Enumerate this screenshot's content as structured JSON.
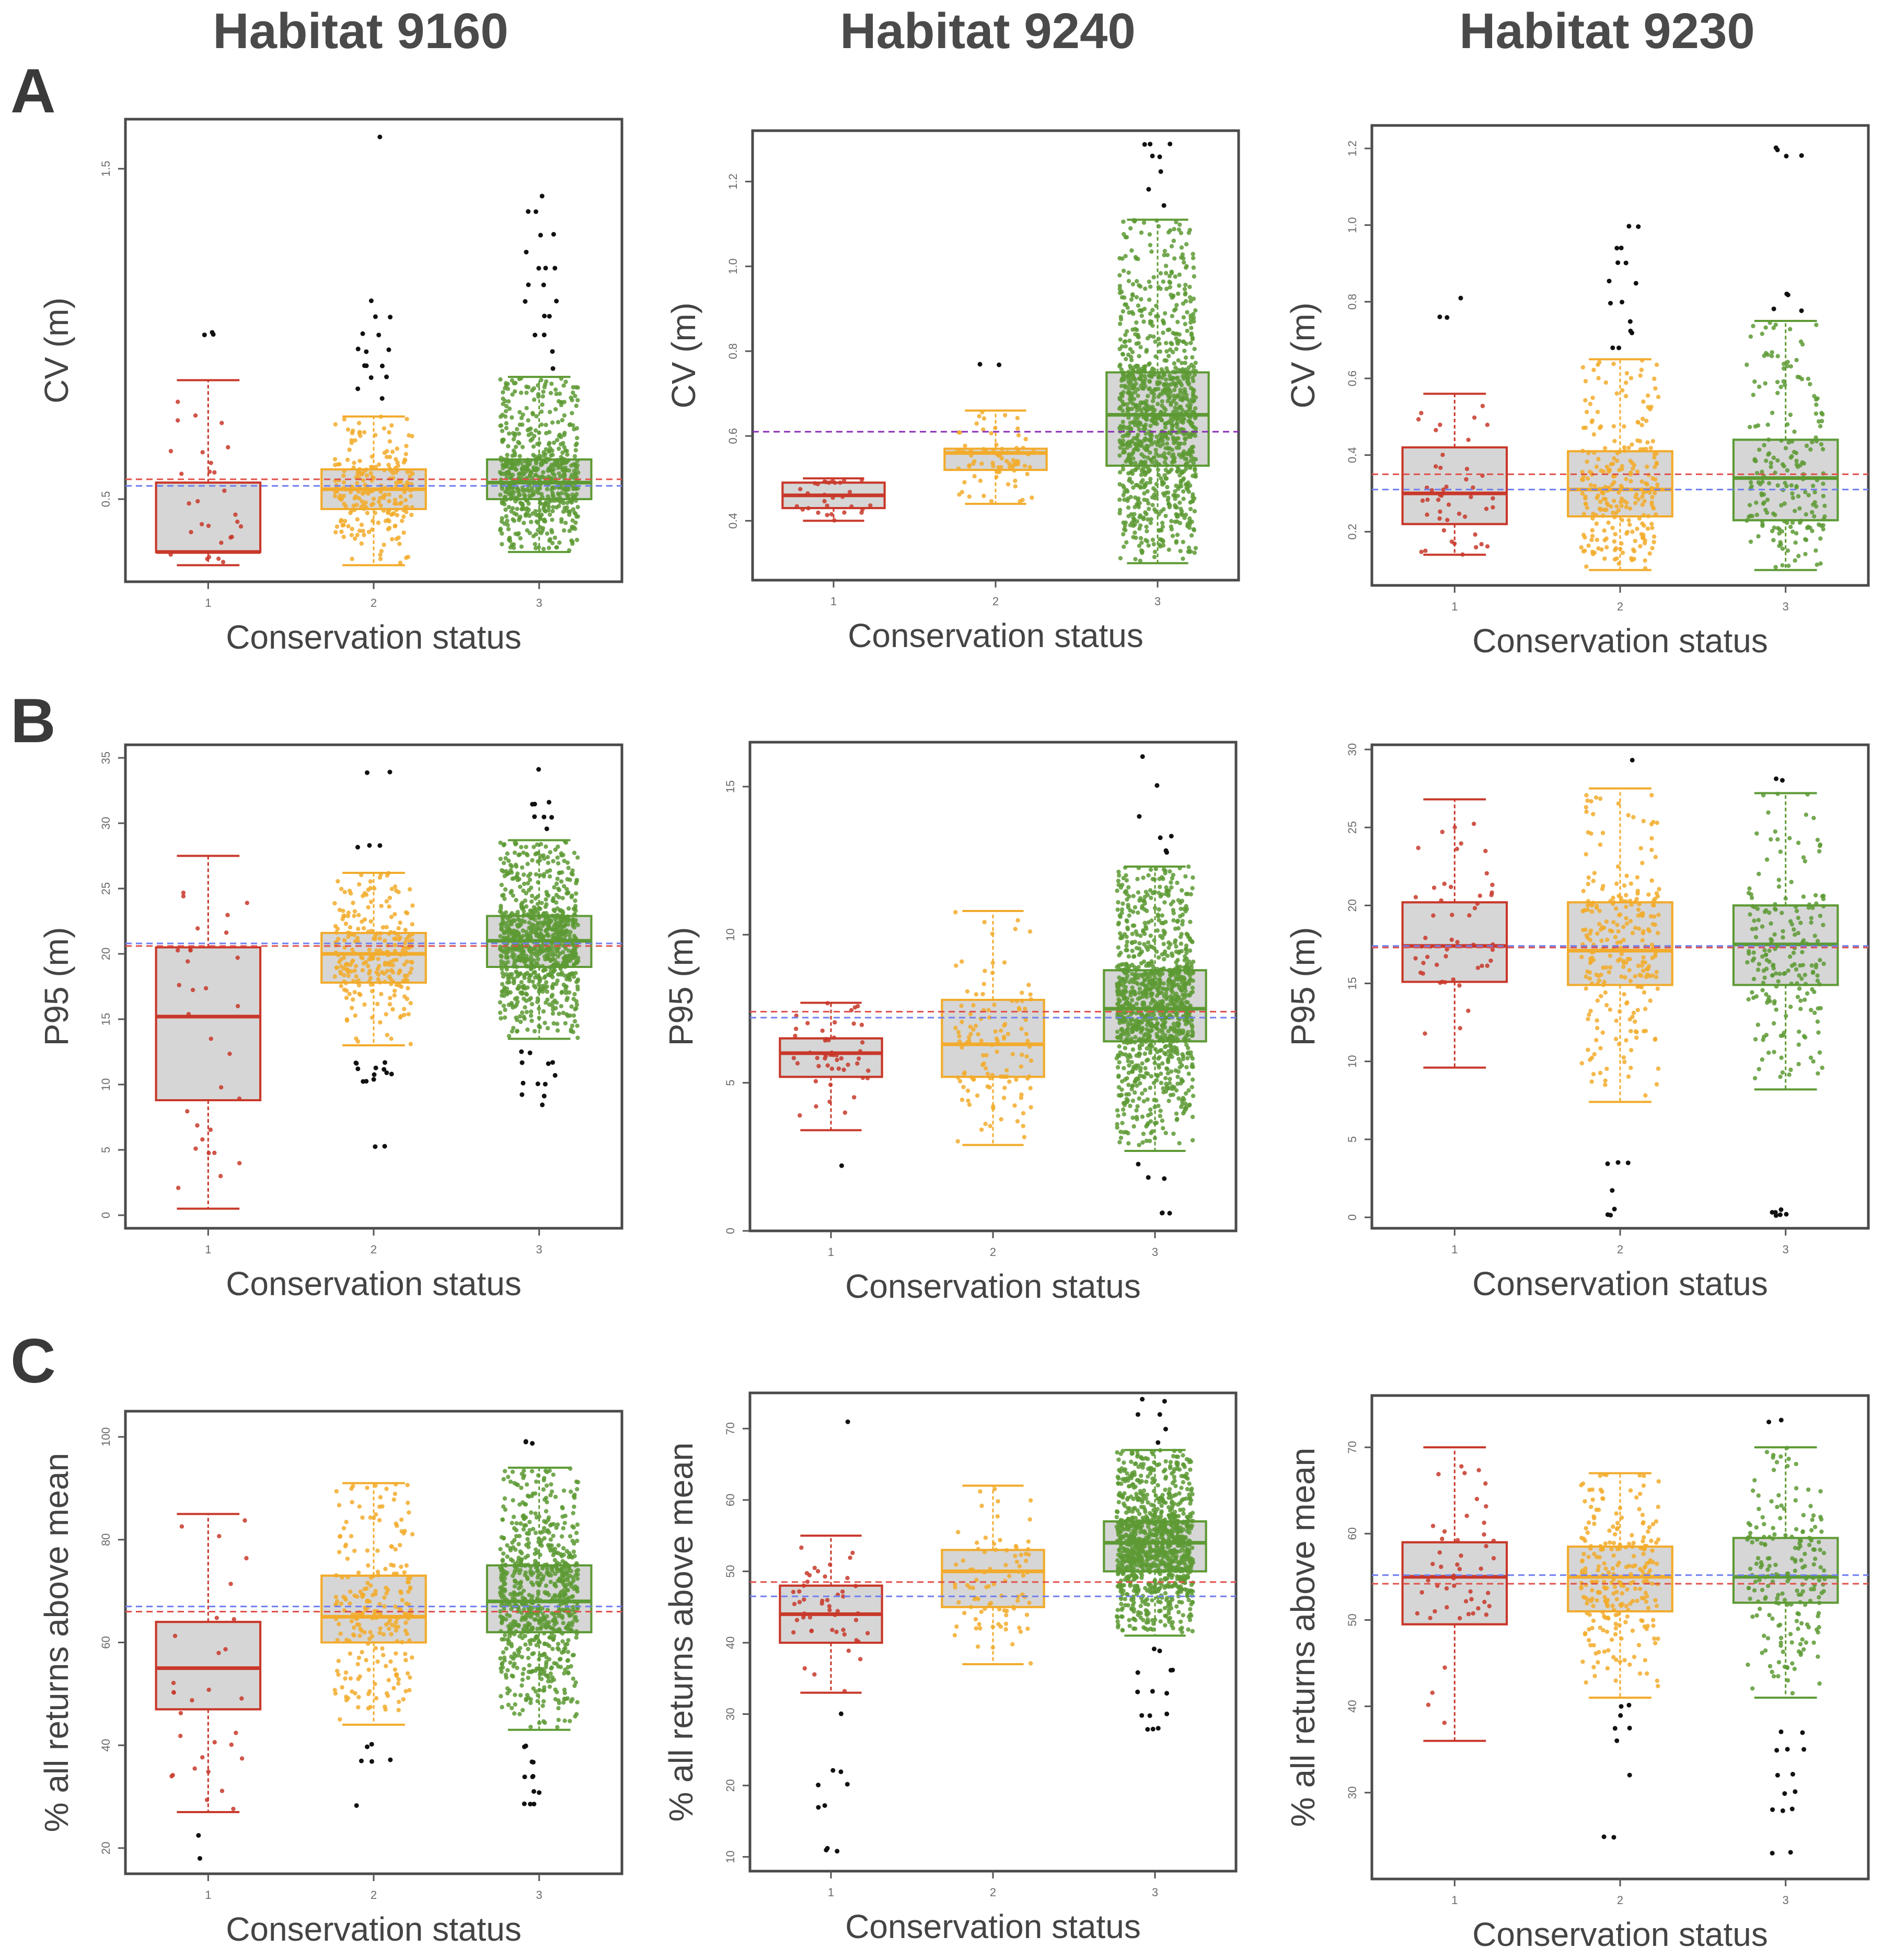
{
  "colors": {
    "status1": "#c8382a",
    "status2": "#f2ab2c",
    "status3": "#5d9a34",
    "box_fill": "#d6d6d6",
    "outlier": "#111111",
    "ref_red": "#e0504a",
    "ref_blue": "#6f7ff0",
    "ref_purple": "#8a2bb8"
  },
  "chart_data": [
    {
      "id": "A-9160",
      "row": "A",
      "habitat": "Habitat 9160",
      "type": "box",
      "xlabel": "Conservation status",
      "ylabel": "CV (m)",
      "categories": [
        "1",
        "2",
        "3"
      ],
      "ylim": [
        0.25,
        1.65
      ],
      "yticks": [
        0.5,
        1.5
      ],
      "ytick_labels": [
        "0.5",
        "1.5"
      ],
      "boxes": [
        {
          "category": "1",
          "min": 0.3,
          "q1": 0.34,
          "median": 0.34,
          "q3": 0.55,
          "max": 0.86,
          "n": 28,
          "outliers": [
            1.0
          ]
        },
        {
          "category": "2",
          "min": 0.3,
          "q1": 0.47,
          "median": 0.53,
          "q3": 0.59,
          "max": 0.75,
          "n": 230,
          "outliers": [
            0.8,
            0.83,
            0.87,
            0.9,
            0.95,
            1.0,
            1.05,
            1.1,
            1.6
          ]
        },
        {
          "category": "3",
          "min": 0.34,
          "q1": 0.5,
          "median": 0.55,
          "q3": 0.62,
          "max": 0.87,
          "n": 650,
          "outliers": [
            0.9,
            0.95,
            1.0,
            1.05,
            1.1,
            1.15,
            1.2,
            1.25,
            1.3,
            1.37,
            1.42
          ]
        }
      ],
      "ref_lines": [
        {
          "color": "red",
          "y": 0.56
        },
        {
          "color": "blue",
          "y": 0.54
        }
      ]
    },
    {
      "id": "A-9240",
      "row": "A",
      "habitat": "Habitat 9240",
      "type": "box",
      "xlabel": "Conservation status",
      "ylabel": "CV (m)",
      "categories": [
        "1",
        "2",
        "3"
      ],
      "ylim": [
        0.26,
        1.32
      ],
      "yticks": [
        0.4,
        0.6,
        0.8,
        1.0,
        1.2
      ],
      "ytick_labels": [
        "0.4",
        "0.6",
        "0.8",
        "1.0",
        "1.2"
      ],
      "boxes": [
        {
          "category": "1",
          "min": 0.4,
          "q1": 0.43,
          "median": 0.46,
          "q3": 0.49,
          "max": 0.5,
          "n": 30,
          "outliers": []
        },
        {
          "category": "2",
          "min": 0.44,
          "q1": 0.52,
          "median": 0.56,
          "q3": 0.57,
          "max": 0.66,
          "n": 80,
          "outliers": [
            0.77
          ]
        },
        {
          "category": "3",
          "min": 0.3,
          "q1": 0.53,
          "median": 0.65,
          "q3": 0.75,
          "max": 1.11,
          "n": 1100,
          "outliers": [
            1.14,
            1.18,
            1.22,
            1.26,
            1.29
          ]
        }
      ],
      "ref_lines": [
        {
          "color": "purple",
          "y": 0.61
        }
      ]
    },
    {
      "id": "A-9230",
      "row": "A",
      "habitat": "Habitat 9230",
      "type": "box",
      "xlabel": "Conservation status",
      "ylabel": "CV (m)",
      "categories": [
        "1",
        "2",
        "3"
      ],
      "ylim": [
        0.06,
        1.26
      ],
      "yticks": [
        0.2,
        0.4,
        0.6,
        0.8,
        1.0,
        1.2
      ],
      "ytick_labels": [
        "0.2",
        "0.4",
        "0.6",
        "0.8",
        "1.0",
        "1.2"
      ],
      "boxes": [
        {
          "category": "1",
          "min": 0.14,
          "q1": 0.22,
          "median": 0.3,
          "q3": 0.42,
          "max": 0.56,
          "n": 45,
          "outliers": [
            0.76,
            0.81
          ]
        },
        {
          "category": "2",
          "min": 0.1,
          "q1": 0.24,
          "median": 0.31,
          "q3": 0.41,
          "max": 0.65,
          "n": 260,
          "outliers": [
            0.68,
            0.72,
            0.75,
            0.8,
            0.85,
            0.9,
            0.94,
            1.0
          ]
        },
        {
          "category": "3",
          "min": 0.1,
          "q1": 0.23,
          "median": 0.34,
          "q3": 0.44,
          "max": 0.75,
          "n": 200,
          "outliers": [
            0.78,
            0.82,
            1.18,
            1.2
          ]
        }
      ],
      "ref_lines": [
        {
          "color": "red",
          "y": 0.35
        },
        {
          "color": "blue",
          "y": 0.31
        }
      ]
    },
    {
      "id": "B-9160",
      "row": "B",
      "habitat": "Habitat 9160",
      "type": "box",
      "xlabel": "Conservation status",
      "ylabel": "P95 (m)",
      "categories": [
        "1",
        "2",
        "3"
      ],
      "ylim": [
        -1,
        36
      ],
      "yticks": [
        0,
        5,
        10,
        15,
        20,
        25,
        30,
        35
      ],
      "ytick_labels": [
        "0",
        "5",
        "10",
        "15",
        "20",
        "25",
        "30",
        "35"
      ],
      "boxes": [
        {
          "category": "1",
          "min": 0.5,
          "q1": 8.8,
          "median": 15.2,
          "q3": 20.5,
          "max": 27.5,
          "n": 30,
          "outliers": []
        },
        {
          "category": "2",
          "min": 13.0,
          "q1": 17.8,
          "median": 20.0,
          "q3": 21.6,
          "max": 26.2,
          "n": 260,
          "outliers": [
            5.3,
            10.3,
            10.8,
            11.2,
            11.7,
            28.2,
            33.8
          ]
        },
        {
          "category": "3",
          "min": 13.5,
          "q1": 19.0,
          "median": 21.0,
          "q3": 22.9,
          "max": 28.7,
          "n": 900,
          "outliers": [
            8.5,
            9.2,
            10.0,
            10.8,
            11.6,
            12.4,
            29.5,
            30.5,
            31.5,
            34.2
          ]
        }
      ],
      "ref_lines": [
        {
          "color": "red",
          "y": 20.6
        },
        {
          "color": "blue",
          "y": 20.8
        }
      ]
    },
    {
      "id": "B-9240",
      "row": "B",
      "habitat": "Habitat 9240",
      "type": "box",
      "xlabel": "Conservation status",
      "ylabel": "P95 (m)",
      "categories": [
        "1",
        "2",
        "3"
      ],
      "ylim": [
        0,
        16.5
      ],
      "yticks": [
        0,
        5,
        10,
        15
      ],
      "ytick_labels": [
        "0",
        "5",
        "10",
        "15"
      ],
      "boxes": [
        {
          "category": "1",
          "min": 3.4,
          "q1": 5.2,
          "median": 6.0,
          "q3": 6.5,
          "max": 7.7,
          "n": 50,
          "outliers": [
            2.2
          ]
        },
        {
          "category": "2",
          "min": 2.9,
          "q1": 5.2,
          "median": 6.3,
          "q3": 7.8,
          "max": 10.8,
          "n": 120,
          "outliers": []
        },
        {
          "category": "3",
          "min": 2.7,
          "q1": 6.4,
          "median": 7.5,
          "q3": 8.8,
          "max": 12.3,
          "n": 1100,
          "outliers": [
            0.6,
            1.8,
            2.3,
            12.8,
            13.3,
            14.0,
            15.0,
            16.0
          ]
        }
      ],
      "ref_lines": [
        {
          "color": "red",
          "y": 7.4
        },
        {
          "color": "blue",
          "y": 7.2
        }
      ]
    },
    {
      "id": "B-9230",
      "row": "B",
      "habitat": "Habitat 9230",
      "type": "box",
      "xlabel": "Conservation status",
      "ylabel": "P95 (m)",
      "categories": [
        "1",
        "2",
        "3"
      ],
      "ylim": [
        -0.7,
        30.3
      ],
      "yticks": [
        0,
        5,
        10,
        15,
        20,
        25,
        30
      ],
      "ytick_labels": [
        "0",
        "5",
        "10",
        "15",
        "20",
        "25",
        "30"
      ],
      "boxes": [
        {
          "category": "1",
          "min": 9.6,
          "q1": 15.1,
          "median": 17.4,
          "q3": 20.2,
          "max": 26.8,
          "n": 50,
          "outliers": []
        },
        {
          "category": "2",
          "min": 7.4,
          "q1": 14.9,
          "median": 17.1,
          "q3": 20.2,
          "max": 27.5,
          "n": 260,
          "outliers": [
            0.2,
            0.5,
            1.8,
            3.5,
            29.3
          ]
        },
        {
          "category": "3",
          "min": 8.2,
          "q1": 14.9,
          "median": 17.5,
          "q3": 20.0,
          "max": 27.2,
          "n": 200,
          "outliers": [
            0.1,
            0.4,
            28.1
          ]
        }
      ],
      "ref_lines": [
        {
          "color": "red",
          "y": 17.3
        },
        {
          "color": "blue",
          "y": 17.4
        }
      ]
    },
    {
      "id": "C-9160",
      "row": "C",
      "habitat": "Habitat 9160",
      "type": "box",
      "xlabel": "Conservation status",
      "ylabel": "% all returns above mean",
      "categories": [
        "1",
        "2",
        "3"
      ],
      "ylim": [
        15,
        105
      ],
      "yticks": [
        20,
        40,
        60,
        80,
        100
      ],
      "ytick_labels": [
        "20",
        "40",
        "60",
        "80",
        "100"
      ],
      "boxes": [
        {
          "category": "1",
          "min": 27.0,
          "q1": 47.0,
          "median": 55.0,
          "q3": 64.0,
          "max": 85.0,
          "n": 30,
          "outliers": [
            18.0,
            22.5
          ]
        },
        {
          "category": "2",
          "min": 44.0,
          "q1": 60.0,
          "median": 65.0,
          "q3": 73.0,
          "max": 91.0,
          "n": 240,
          "outliers": [
            28.0,
            37.0,
            40.0
          ]
        },
        {
          "category": "3",
          "min": 43.0,
          "q1": 62.0,
          "median": 68.0,
          "q3": 75.0,
          "max": 94.0,
          "n": 800,
          "outliers": [
            28.5,
            31.0,
            34.0,
            37.0,
            40.0,
            99.0
          ]
        }
      ],
      "ref_lines": [
        {
          "color": "red",
          "y": 66.0
        },
        {
          "color": "blue",
          "y": 67.0
        }
      ]
    },
    {
      "id": "C-9240",
      "row": "C",
      "habitat": "Habitat 9240",
      "type": "box",
      "xlabel": "Conservation status",
      "ylabel": "% all returns above mean",
      "categories": [
        "1",
        "2",
        "3"
      ],
      "ylim": [
        8,
        75
      ],
      "yticks": [
        10,
        20,
        30,
        40,
        50,
        60,
        70
      ],
      "ytick_labels": [
        "10",
        "20",
        "30",
        "40",
        "50",
        "60",
        "70"
      ],
      "boxes": [
        {
          "category": "1",
          "min": 33.0,
          "q1": 40.0,
          "median": 44.0,
          "q3": 48.0,
          "max": 55.0,
          "n": 50,
          "outliers": [
            11.0,
            17.0,
            20.0,
            22.0,
            30.0,
            71.0
          ]
        },
        {
          "category": "2",
          "min": 37.0,
          "q1": 45.0,
          "median": 50.0,
          "q3": 53.0,
          "max": 62.0,
          "n": 90,
          "outliers": []
        },
        {
          "category": "3",
          "min": 41.0,
          "q1": 50.0,
          "median": 54.0,
          "q3": 57.0,
          "max": 67.0,
          "n": 1100,
          "outliers": [
            28.0,
            30.0,
            33.0,
            36.0,
            39.0,
            68.0,
            70.0,
            72.0,
            74.0
          ]
        }
      ],
      "ref_lines": [
        {
          "color": "red",
          "y": 48.5
        },
        {
          "color": "blue",
          "y": 46.5
        }
      ]
    },
    {
      "id": "C-9230",
      "row": "C",
      "habitat": "Habitat 9230",
      "type": "box",
      "xlabel": "Conservation status",
      "ylabel": "% all returns above mean",
      "categories": [
        "1",
        "2",
        "3"
      ],
      "ylim": [
        20,
        76
      ],
      "yticks": [
        30,
        40,
        50,
        60,
        70
      ],
      "ytick_labels": [
        "30",
        "40",
        "50",
        "60",
        "70"
      ],
      "boxes": [
        {
          "category": "1",
          "min": 36.0,
          "q1": 49.5,
          "median": 55.0,
          "q3": 59.0,
          "max": 70.0,
          "n": 50,
          "outliers": []
        },
        {
          "category": "2",
          "min": 41.0,
          "q1": 51.0,
          "median": 55.0,
          "q3": 58.5,
          "max": 67.0,
          "n": 260,
          "outliers": [
            25.0,
            32.0,
            36.0,
            37.5,
            39.0,
            40.0
          ]
        },
        {
          "category": "3",
          "min": 41.0,
          "q1": 52.0,
          "median": 55.0,
          "q3": 59.5,
          "max": 70.0,
          "n": 200,
          "outliers": [
            23.0,
            28.0,
            30.0,
            32.0,
            35.0,
            37.0,
            73.0
          ]
        }
      ],
      "ref_lines": [
        {
          "color": "red",
          "y": 54.2
        },
        {
          "color": "blue",
          "y": 55.2
        }
      ]
    }
  ],
  "labels": {
    "habitat_9160": "Habitat 9160",
    "habitat_9240": "Habitat 9240",
    "habitat_9230": "Habitat 9230",
    "row_a": "A",
    "row_b": "B",
    "row_c": "C"
  }
}
